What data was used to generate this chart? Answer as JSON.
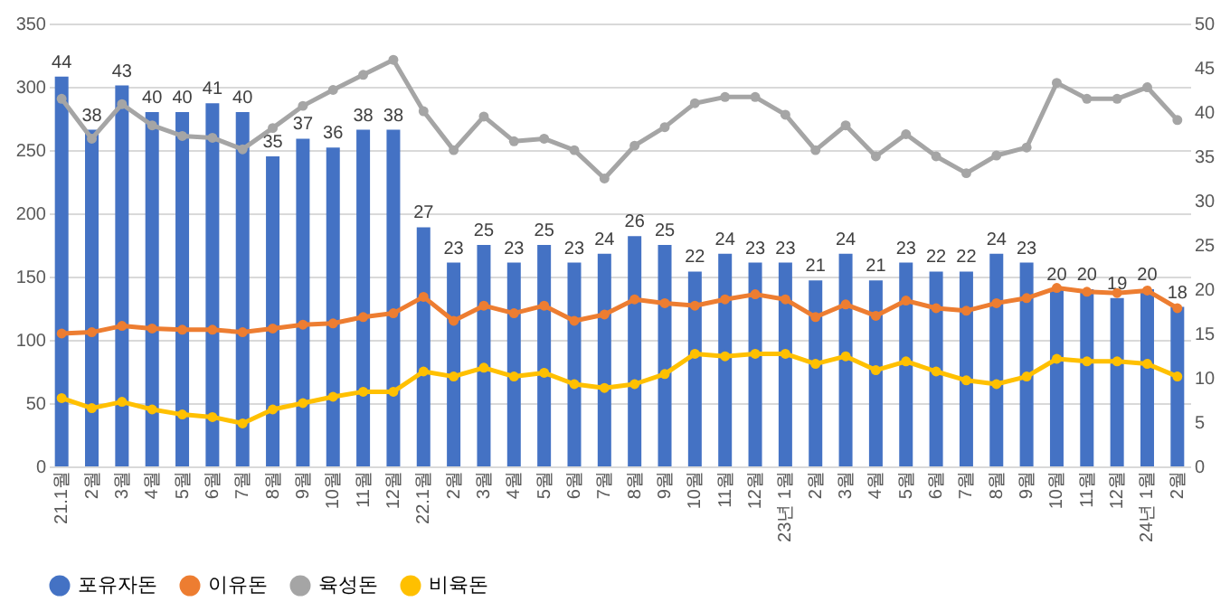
{
  "chart_data": {
    "type": "bar",
    "categories": [
      "21.1월",
      "2월",
      "3월",
      "4월",
      "5월",
      "6월",
      "7월",
      "8월",
      "9월",
      "10월",
      "11월",
      "12월",
      "22.1월",
      "2월",
      "3월",
      "4월",
      "5월",
      "6월",
      "7월",
      "8월",
      "9월",
      "10월",
      "11월",
      "12월",
      "23년 1월",
      "2월",
      "3월",
      "4월",
      "5월",
      "6월",
      "7월",
      "8월",
      "9월",
      "10월",
      "11월",
      "12월",
      "24년 1월",
      "2월"
    ],
    "series": [
      {
        "name": "포유자돈",
        "color": "#4472c4",
        "axis": "y2",
        "values": [
          44,
          38,
          43,
          40,
          40,
          41,
          40,
          35,
          37,
          36,
          38,
          38,
          27,
          23,
          25,
          23,
          25,
          23,
          24,
          26,
          25,
          22,
          24,
          23,
          23,
          21,
          24,
          21,
          23,
          22,
          22,
          24,
          23,
          20,
          20,
          19,
          20,
          18
        ],
        "value_labels": [
          "44",
          "38",
          "43",
          "40",
          "40",
          "41",
          "40",
          "35",
          "37",
          "36",
          "38",
          "38",
          "27",
          "23",
          "25",
          "23",
          "25",
          "23",
          "24",
          "26",
          "25",
          "22",
          "24",
          "23",
          "23",
          "21",
          "24",
          "21",
          "23",
          "22",
          "22",
          "24",
          "23",
          "20",
          "20",
          "19",
          "20",
          "18"
        ]
      },
      {
        "name": "이유돈",
        "type": "line",
        "color": "#ed7d31",
        "values": [
          105,
          106,
          111,
          109,
          108,
          108,
          106,
          109,
          112,
          113,
          118,
          121,
          134,
          115,
          127,
          121,
          127,
          115,
          120,
          132,
          129,
          127,
          132,
          136,
          132,
          118,
          128,
          119,
          131,
          125,
          123,
          129,
          133,
          141,
          138,
          137,
          139,
          125
        ]
      },
      {
        "name": "육성돈",
        "type": "line",
        "color": "#a5a5a5",
        "axis": "y2",
        "values": [
          41.5,
          37.0,
          40.9,
          38.5,
          37.3,
          37.1,
          35.8,
          38.2,
          40.7,
          42.5,
          44.2,
          45.9,
          40.1,
          35.7,
          39.5,
          36.7,
          37.0,
          35.7,
          32.5,
          36.2,
          38.3,
          41.0,
          41.7,
          41.7,
          39.7,
          35.7,
          38.5,
          35.0,
          37.5,
          35.0,
          33.1,
          35.1,
          36.0,
          43.3,
          41.5,
          41.5,
          42.8,
          39.1
        ]
      },
      {
        "name": "비육돈",
        "type": "line",
        "color": "#ffc000",
        "values": [
          54,
          46,
          51,
          45,
          41,
          39,
          34,
          45,
          50,
          55,
          59,
          59,
          75,
          71,
          78,
          71,
          74,
          65,
          62,
          65,
          73,
          89,
          87,
          89,
          89,
          81,
          87,
          76,
          83,
          75,
          68,
          65,
          71,
          85,
          83,
          83,
          81,
          71
        ]
      }
    ],
    "ylim": [
      0,
      350
    ],
    "yticks": [
      0,
      50,
      100,
      150,
      200,
      250,
      300,
      350
    ],
    "y2lim": [
      0,
      50
    ],
    "y2ticks": [
      0,
      5,
      10,
      15,
      20,
      25,
      30,
      35,
      40,
      45,
      50
    ],
    "grid": "y",
    "legend": "bottom",
    "marker": "circle"
  }
}
